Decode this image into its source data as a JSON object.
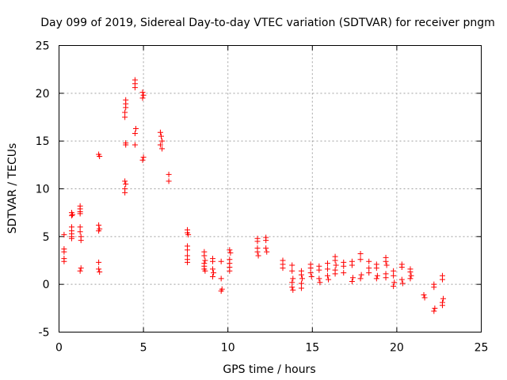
{
  "chart_data": {
    "type": "scatter",
    "title": "Day 099 of 2019, Sidereal Day-to-day VTEC variation (SDTVAR) for receiver pngm",
    "xlabel": "GPS time / hours",
    "ylabel": "SDTVAR / TECUs",
    "xlim": [
      0,
      25
    ],
    "ylim": [
      -5,
      25
    ],
    "xticks": [
      "0",
      "5",
      "10",
      "15",
      "20",
      "25"
    ],
    "yticks": [
      "-5",
      "0",
      "5",
      "10",
      "15",
      "20",
      "25"
    ],
    "grid": true,
    "marker": "plus",
    "color": "#ff0000",
    "series": [
      {
        "name": "SDTVAR",
        "points": [
          [
            0.3,
            5.2
          ],
          [
            0.3,
            3.7
          ],
          [
            0.3,
            3.4
          ],
          [
            0.3,
            2.7
          ],
          [
            0.3,
            2.4
          ],
          [
            0.75,
            7.5
          ],
          [
            0.75,
            7.2
          ],
          [
            0.8,
            7.3
          ],
          [
            0.75,
            6.0
          ],
          [
            0.75,
            5.6
          ],
          [
            0.75,
            5.3
          ],
          [
            0.75,
            5.0
          ],
          [
            0.75,
            4.8
          ],
          [
            1.25,
            8.2
          ],
          [
            1.25,
            7.9
          ],
          [
            1.25,
            7.6
          ],
          [
            1.25,
            7.4
          ],
          [
            1.25,
            6.0
          ],
          [
            1.25,
            5.5
          ],
          [
            1.3,
            5.0
          ],
          [
            1.3,
            4.6
          ],
          [
            1.3,
            1.7
          ],
          [
            1.25,
            1.4
          ],
          [
            2.35,
            13.6
          ],
          [
            2.4,
            13.4
          ],
          [
            2.35,
            6.2
          ],
          [
            2.4,
            5.8
          ],
          [
            2.35,
            5.6
          ],
          [
            2.35,
            2.3
          ],
          [
            2.35,
            1.6
          ],
          [
            2.4,
            1.3
          ],
          [
            3.95,
            19.3
          ],
          [
            3.95,
            18.9
          ],
          [
            3.95,
            18.5
          ],
          [
            3.9,
            18.0
          ],
          [
            3.9,
            17.5
          ],
          [
            3.95,
            14.8
          ],
          [
            3.95,
            14.6
          ],
          [
            3.9,
            10.8
          ],
          [
            3.95,
            10.5
          ],
          [
            3.9,
            10.0
          ],
          [
            3.9,
            9.6
          ],
          [
            4.5,
            21.4
          ],
          [
            4.5,
            21.0
          ],
          [
            4.5,
            20.6
          ],
          [
            4.55,
            16.3
          ],
          [
            4.5,
            15.8
          ],
          [
            4.5,
            14.6
          ],
          [
            4.95,
            20.1
          ],
          [
            5.0,
            19.8
          ],
          [
            4.95,
            19.5
          ],
          [
            5.0,
            13.3
          ],
          [
            4.95,
            13.0
          ],
          [
            6.0,
            15.9
          ],
          [
            6.05,
            15.5
          ],
          [
            6.1,
            15.0
          ],
          [
            6.0,
            14.6
          ],
          [
            6.1,
            14.2
          ],
          [
            6.5,
            11.5
          ],
          [
            6.5,
            10.8
          ],
          [
            7.6,
            5.7
          ],
          [
            7.6,
            5.4
          ],
          [
            7.65,
            5.2
          ],
          [
            7.6,
            4.0
          ],
          [
            7.6,
            3.6
          ],
          [
            7.6,
            3.0
          ],
          [
            7.6,
            2.6
          ],
          [
            7.6,
            2.3
          ],
          [
            8.6,
            3.4
          ],
          [
            8.6,
            3.0
          ],
          [
            8.65,
            2.5
          ],
          [
            8.6,
            2.2
          ],
          [
            8.6,
            1.9
          ],
          [
            8.6,
            1.6
          ],
          [
            8.65,
            1.4
          ],
          [
            9.1,
            2.7
          ],
          [
            9.1,
            2.4
          ],
          [
            9.1,
            1.6
          ],
          [
            9.15,
            1.2
          ],
          [
            9.1,
            0.8
          ],
          [
            9.6,
            2.4
          ],
          [
            9.6,
            0.6
          ],
          [
            9.65,
            -0.5
          ],
          [
            9.6,
            -0.7
          ],
          [
            10.1,
            3.6
          ],
          [
            10.15,
            3.3
          ],
          [
            10.1,
            2.6
          ],
          [
            10.1,
            2.2
          ],
          [
            10.1,
            1.8
          ],
          [
            10.1,
            1.4
          ],
          [
            11.75,
            4.8
          ],
          [
            11.75,
            4.5
          ],
          [
            11.75,
            3.8
          ],
          [
            11.75,
            3.4
          ],
          [
            11.8,
            3.0
          ],
          [
            12.25,
            4.9
          ],
          [
            12.25,
            4.6
          ],
          [
            12.25,
            3.8
          ],
          [
            12.3,
            3.4
          ],
          [
            13.25,
            2.5
          ],
          [
            13.25,
            2.1
          ],
          [
            13.25,
            1.7
          ],
          [
            13.8,
            2.0
          ],
          [
            13.8,
            1.4
          ],
          [
            13.85,
            0.6
          ],
          [
            13.8,
            0.2
          ],
          [
            13.8,
            -0.3
          ],
          [
            13.85,
            -0.6
          ],
          [
            14.35,
            1.4
          ],
          [
            14.35,
            1.0
          ],
          [
            14.4,
            0.6
          ],
          [
            14.35,
            0.1
          ],
          [
            14.35,
            -0.4
          ],
          [
            14.9,
            2.1
          ],
          [
            14.9,
            1.7
          ],
          [
            14.9,
            1.2
          ],
          [
            14.95,
            0.8
          ],
          [
            15.4,
            1.9
          ],
          [
            15.4,
            1.5
          ],
          [
            15.4,
            0.6
          ],
          [
            15.45,
            0.2
          ],
          [
            15.9,
            2.2
          ],
          [
            15.9,
            1.6
          ],
          [
            15.9,
            0.9
          ],
          [
            15.95,
            0.5
          ],
          [
            16.35,
            2.9
          ],
          [
            16.35,
            2.5
          ],
          [
            16.4,
            2.0
          ],
          [
            16.35,
            1.5
          ],
          [
            16.35,
            1.1
          ],
          [
            16.85,
            2.3
          ],
          [
            16.85,
            1.9
          ],
          [
            16.85,
            1.2
          ],
          [
            17.35,
            2.4
          ],
          [
            17.35,
            2.0
          ],
          [
            17.4,
            0.7
          ],
          [
            17.35,
            0.3
          ],
          [
            17.85,
            3.2
          ],
          [
            17.85,
            2.6
          ],
          [
            17.9,
            1.0
          ],
          [
            17.85,
            0.6
          ],
          [
            18.35,
            2.4
          ],
          [
            18.35,
            1.7
          ],
          [
            18.35,
            1.2
          ],
          [
            18.8,
            2.1
          ],
          [
            18.8,
            1.7
          ],
          [
            18.85,
            0.9
          ],
          [
            18.8,
            0.6
          ],
          [
            19.35,
            2.8
          ],
          [
            19.35,
            2.4
          ],
          [
            19.4,
            2.0
          ],
          [
            19.35,
            1.1
          ],
          [
            19.35,
            0.7
          ],
          [
            19.8,
            1.4
          ],
          [
            19.8,
            0.9
          ],
          [
            19.85,
            0.2
          ],
          [
            19.8,
            -0.2
          ],
          [
            20.3,
            2.1
          ],
          [
            20.3,
            1.8
          ],
          [
            20.3,
            0.5
          ],
          [
            20.35,
            0.1
          ],
          [
            20.8,
            1.6
          ],
          [
            20.8,
            1.3
          ],
          [
            20.85,
            0.9
          ],
          [
            20.8,
            0.6
          ],
          [
            21.6,
            -1.1
          ],
          [
            21.65,
            -1.4
          ],
          [
            22.2,
            0.0
          ],
          [
            22.2,
            -0.3
          ],
          [
            22.25,
            -2.5
          ],
          [
            22.2,
            -2.8
          ],
          [
            22.7,
            0.9
          ],
          [
            22.7,
            0.5
          ],
          [
            22.75,
            -1.5
          ],
          [
            22.7,
            -1.9
          ],
          [
            22.7,
            -2.2
          ]
        ]
      }
    ]
  }
}
